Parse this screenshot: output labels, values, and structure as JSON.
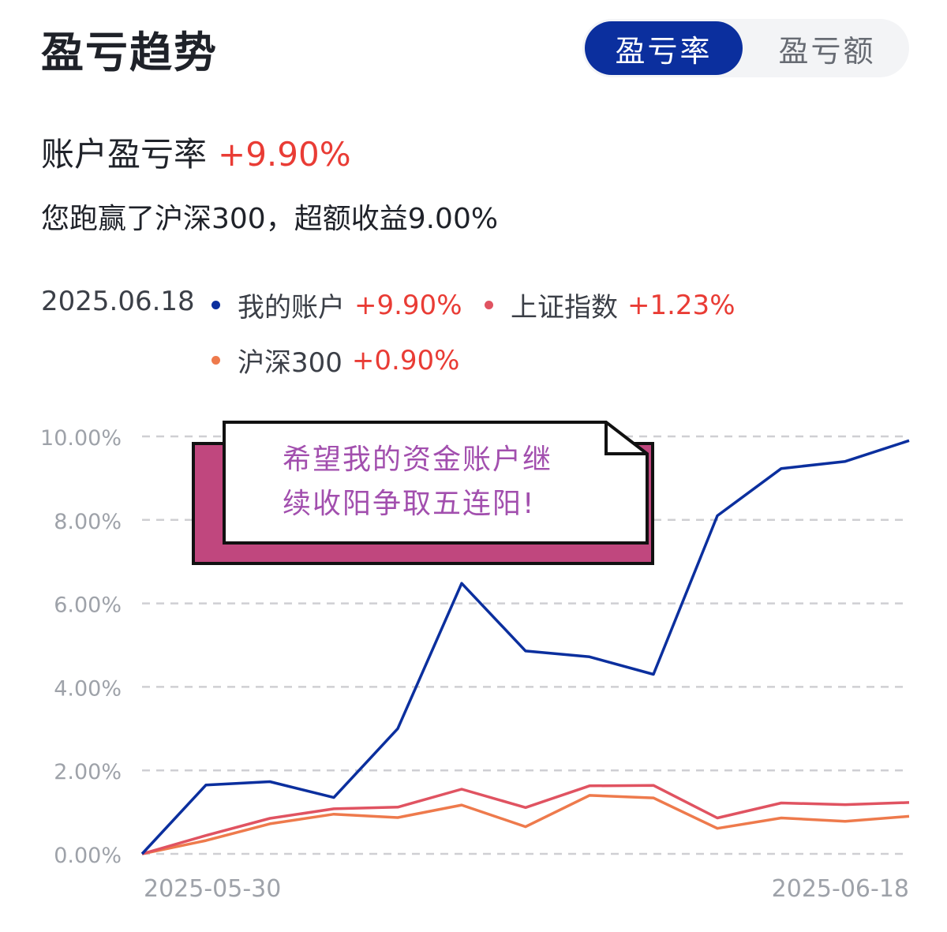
{
  "header": {
    "title": "盈亏趋势",
    "toggle": {
      "active_label": "盈亏率",
      "inactive_label": "盈亏额"
    }
  },
  "summary": {
    "rate_label": "账户盈亏率",
    "rate_value": "+9.90%",
    "subtitle": "您跑赢了沪深300，超额收益9.00%"
  },
  "legend": {
    "date": "2025.06.18",
    "items": [
      {
        "name": "我的账户",
        "value": "+9.90%",
        "color": "#0b2f9e"
      },
      {
        "name": "上证指数",
        "value": "+1.23%",
        "color": "#e05361"
      },
      {
        "name": "沪深300",
        "value": "+0.90%",
        "color": "#ee7a4c"
      }
    ]
  },
  "note": {
    "line1": "希望我的资金账户继",
    "line2": "续收阳争取五连阳!"
  },
  "chart_data": {
    "type": "line",
    "x_labels_shown": [
      "2025-05-30",
      "2025-06-18"
    ],
    "y_ticks": [
      "0.00%",
      "2.00%",
      "4.00%",
      "6.00%",
      "8.00%",
      "10.00%"
    ],
    "ylim": [
      0,
      10
    ],
    "grid": true,
    "series": [
      {
        "name": "我的账户",
        "color": "#0b2f9e",
        "values": [
          0,
          1.65,
          1.73,
          1.35,
          3.0,
          6.48,
          4.86,
          4.72,
          4.3,
          8.1,
          9.23,
          9.4,
          9.9
        ]
      },
      {
        "name": "上证指数",
        "color": "#e05361",
        "values": [
          0,
          0.44,
          0.85,
          1.08,
          1.12,
          1.55,
          1.11,
          1.63,
          1.64,
          0.86,
          1.22,
          1.18,
          1.23
        ]
      },
      {
        "name": "沪深300",
        "color": "#ee7a4c",
        "values": [
          0,
          0.32,
          0.72,
          0.95,
          0.87,
          1.17,
          0.65,
          1.4,
          1.34,
          0.61,
          0.86,
          0.78,
          0.9
        ]
      }
    ]
  }
}
